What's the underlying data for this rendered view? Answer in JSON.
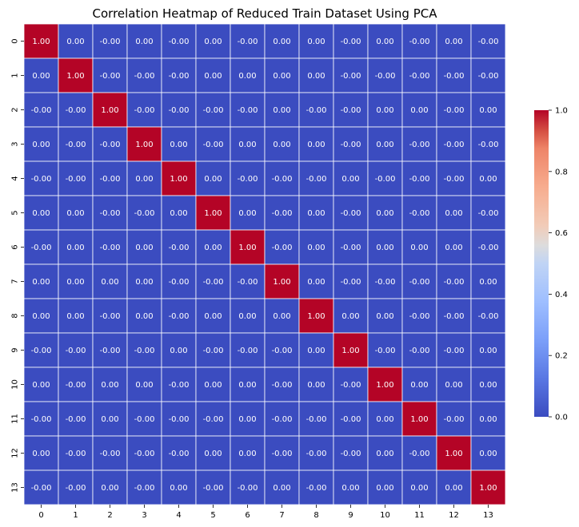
{
  "chart_data": {
    "type": "heatmap",
    "title": "Correlation Heatmap of Reduced Train Dataset Using PCA",
    "xlabel": "",
    "ylabel": "",
    "x_categories": [
      "0",
      "1",
      "2",
      "3",
      "4",
      "5",
      "6",
      "7",
      "8",
      "9",
      "10",
      "11",
      "12",
      "13"
    ],
    "y_categories": [
      "0",
      "1",
      "2",
      "3",
      "4",
      "5",
      "6",
      "7",
      "8",
      "9",
      "10",
      "11",
      "12",
      "13"
    ],
    "cell_labels": [
      [
        "1.00",
        "0.00",
        "-0.00",
        "0.00",
        "-0.00",
        "0.00",
        "-0.00",
        "0.00",
        "0.00",
        "-0.00",
        "0.00",
        "-0.00",
        "0.00",
        "-0.00"
      ],
      [
        "0.00",
        "1.00",
        "-0.00",
        "-0.00",
        "-0.00",
        "0.00",
        "0.00",
        "0.00",
        "0.00",
        "-0.00",
        "-0.00",
        "-0.00",
        "-0.00",
        "-0.00"
      ],
      [
        "-0.00",
        "-0.00",
        "1.00",
        "-0.00",
        "-0.00",
        "-0.00",
        "-0.00",
        "0.00",
        "-0.00",
        "-0.00",
        "0.00",
        "0.00",
        "-0.00",
        "0.00"
      ],
      [
        "0.00",
        "-0.00",
        "-0.00",
        "1.00",
        "0.00",
        "-0.00",
        "0.00",
        "0.00",
        "0.00",
        "-0.00",
        "0.00",
        "-0.00",
        "-0.00",
        "-0.00"
      ],
      [
        "-0.00",
        "-0.00",
        "-0.00",
        "0.00",
        "1.00",
        "0.00",
        "-0.00",
        "-0.00",
        "-0.00",
        "0.00",
        "-0.00",
        "-0.00",
        "-0.00",
        "0.00"
      ],
      [
        "0.00",
        "0.00",
        "-0.00",
        "-0.00",
        "0.00",
        "1.00",
        "0.00",
        "-0.00",
        "0.00",
        "-0.00",
        "0.00",
        "-0.00",
        "0.00",
        "-0.00"
      ],
      [
        "-0.00",
        "0.00",
        "-0.00",
        "0.00",
        "-0.00",
        "0.00",
        "1.00",
        "-0.00",
        "0.00",
        "-0.00",
        "0.00",
        "0.00",
        "0.00",
        "-0.00"
      ],
      [
        "0.00",
        "0.00",
        "0.00",
        "0.00",
        "-0.00",
        "-0.00",
        "-0.00",
        "1.00",
        "0.00",
        "-0.00",
        "-0.00",
        "-0.00",
        "-0.00",
        "0.00"
      ],
      [
        "0.00",
        "0.00",
        "-0.00",
        "0.00",
        "-0.00",
        "0.00",
        "0.00",
        "0.00",
        "1.00",
        "0.00",
        "0.00",
        "-0.00",
        "-0.00",
        "-0.00"
      ],
      [
        "-0.00",
        "-0.00",
        "-0.00",
        "-0.00",
        "0.00",
        "-0.00",
        "-0.00",
        "-0.00",
        "0.00",
        "1.00",
        "-0.00",
        "-0.00",
        "-0.00",
        "0.00"
      ],
      [
        "0.00",
        "-0.00",
        "0.00",
        "0.00",
        "-0.00",
        "0.00",
        "0.00",
        "-0.00",
        "0.00",
        "-0.00",
        "1.00",
        "0.00",
        "0.00",
        "0.00"
      ],
      [
        "-0.00",
        "-0.00",
        "0.00",
        "-0.00",
        "-0.00",
        "-0.00",
        "0.00",
        "-0.00",
        "-0.00",
        "-0.00",
        "0.00",
        "1.00",
        "-0.00",
        "0.00"
      ],
      [
        "0.00",
        "-0.00",
        "-0.00",
        "-0.00",
        "-0.00",
        "0.00",
        "0.00",
        "-0.00",
        "-0.00",
        "-0.00",
        "0.00",
        "-0.00",
        "1.00",
        "0.00"
      ],
      [
        "-0.00",
        "-0.00",
        "0.00",
        "-0.00",
        "0.00",
        "-0.00",
        "-0.00",
        "0.00",
        "-0.00",
        "0.00",
        "0.00",
        "0.00",
        "0.00",
        "1.00"
      ]
    ],
    "colorbar": {
      "range": [
        0.0,
        1.0
      ],
      "ticks": [
        "0.0",
        "0.2",
        "0.4",
        "0.6",
        "0.8",
        "1.0"
      ],
      "colormap": "coolwarm",
      "low_color": "#3b4cc0",
      "mid_color": "#dddcdc",
      "high_color": "#b40426"
    },
    "grid_line_color": "#ffffff",
    "low_label_color": "#ffffff",
    "high_label_color": "#ffffff"
  }
}
